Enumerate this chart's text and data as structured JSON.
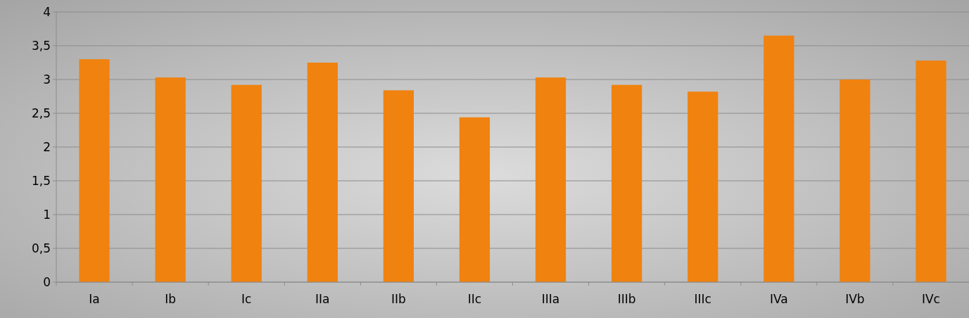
{
  "chart_data": {
    "type": "bar",
    "categories": [
      "Ia",
      "Ib",
      "Ic",
      "IIa",
      "IIb",
      "IIc",
      "IIIa",
      "IIIb",
      "IIIc",
      "IVa",
      "IVb",
      "IVc"
    ],
    "values": [
      3.3,
      3.03,
      2.92,
      3.25,
      2.84,
      2.44,
      3.03,
      2.92,
      2.82,
      3.65,
      3.0,
      3.28
    ],
    "color": "#f0820f",
    "ylim": [
      0,
      4
    ],
    "yticks": [
      0,
      {
        "value": 0.5,
        "label": "0,5"
      },
      1,
      {
        "value": 1.5,
        "label": "1,5"
      },
      2,
      {
        "value": 2.5,
        "label": "2,5"
      },
      3,
      {
        "value": 3.5,
        "label": "3,5"
      },
      4
    ],
    "grid": "y"
  }
}
